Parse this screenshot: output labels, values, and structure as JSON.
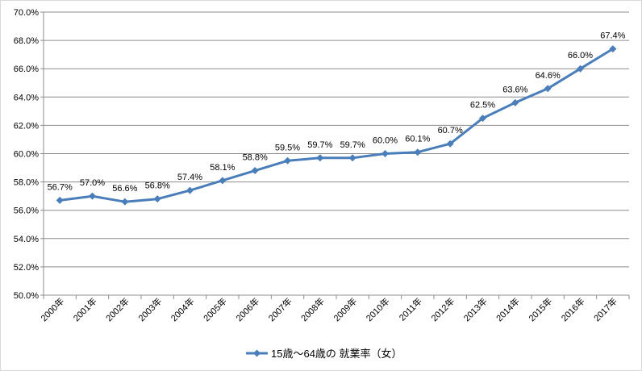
{
  "chart_data": {
    "type": "line",
    "categories": [
      "2000年",
      "2001年",
      "2002年",
      "2003年",
      "2004年",
      "2005年",
      "2006年",
      "2007年",
      "2008年",
      "2009年",
      "2010年",
      "2011年",
      "2012年",
      "2013年",
      "2014年",
      "2015年",
      "2016年",
      "2017年"
    ],
    "series": [
      {
        "name": "15歳～64歳の 就業率（女）",
        "values": [
          56.7,
          57.0,
          56.6,
          56.8,
          57.4,
          58.1,
          58.8,
          59.5,
          59.7,
          59.7,
          60.0,
          60.1,
          60.7,
          62.5,
          63.6,
          64.6,
          66.0,
          67.4
        ],
        "labels": [
          "56.7%",
          "57.0%",
          "56.6%",
          "56.8%",
          "57.4%",
          "58.1%",
          "58.8%",
          "59.5%",
          "59.7%",
          "59.7%",
          "60.0%",
          "60.1%",
          "60.7%",
          "62.5%",
          "63.6%",
          "64.6%",
          "66.0%",
          "67.4%"
        ],
        "color": "#4a7ebb"
      }
    ],
    "yticks": [
      "50.0%",
      "52.0%",
      "54.0%",
      "56.0%",
      "58.0%",
      "60.0%",
      "62.0%",
      "64.0%",
      "66.0%",
      "68.0%",
      "70.0%"
    ],
    "ylim": [
      50,
      70
    ],
    "grid": true,
    "legend": "bottom"
  }
}
